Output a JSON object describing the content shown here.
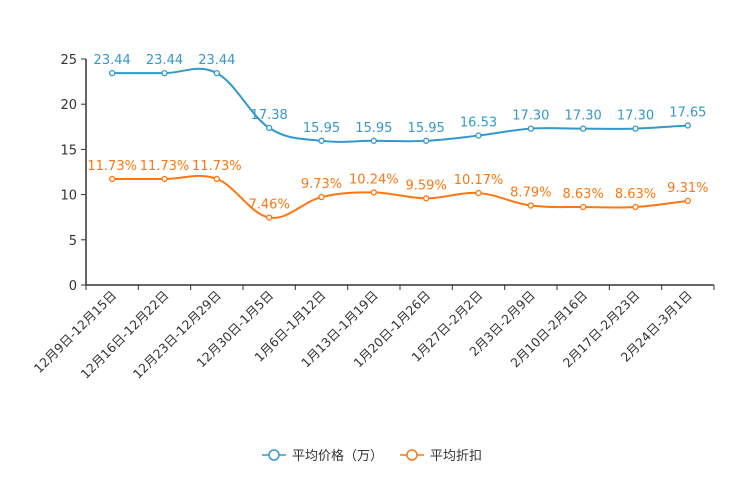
{
  "chart_data": {
    "type": "line",
    "categories": [
      "12月9日-12月15日",
      "12月16日-12月22日",
      "12月23日-12月29日",
      "12月30日-1月5日",
      "1月6日-1月12日",
      "1月13日-1月19日",
      "1月20日-1月26日",
      "1月27日-2月2日",
      "2月3日-2月9日",
      "2月10日-2月16日",
      "2月17日-2月23日",
      "2月24日-3月1日"
    ],
    "y_ticks": [
      "0",
      "5",
      "10",
      "15",
      "20",
      "25"
    ],
    "ylim": [
      0,
      25
    ],
    "series": [
      {
        "name": "平均价格（万）",
        "color": "#3399cc",
        "values": [
          23.44,
          23.44,
          23.44,
          17.38,
          15.95,
          15.95,
          15.95,
          16.53,
          17.3,
          17.3,
          17.3,
          17.65
        ],
        "labels": [
          "23.44",
          "23.44",
          "23.44",
          "17.38",
          "15.95",
          "15.95",
          "15.95",
          "16.53",
          "17.30",
          "17.30",
          "17.30",
          "17.65"
        ]
      },
      {
        "name": "平均折扣",
        "color": "#ff7711",
        "values": [
          11.73,
          11.73,
          11.73,
          7.46,
          9.73,
          10.24,
          9.59,
          10.17,
          8.79,
          8.63,
          8.63,
          9.31
        ],
        "labels": [
          "11.73%",
          "11.73%",
          "11.73%",
          "7.46%",
          "9.73%",
          "10.24%",
          "9.59%",
          "10.17%",
          "8.79%",
          "8.63%",
          "8.63%",
          "9.31%"
        ]
      }
    ],
    "legend_position": "bottom-center",
    "grid": false
  }
}
